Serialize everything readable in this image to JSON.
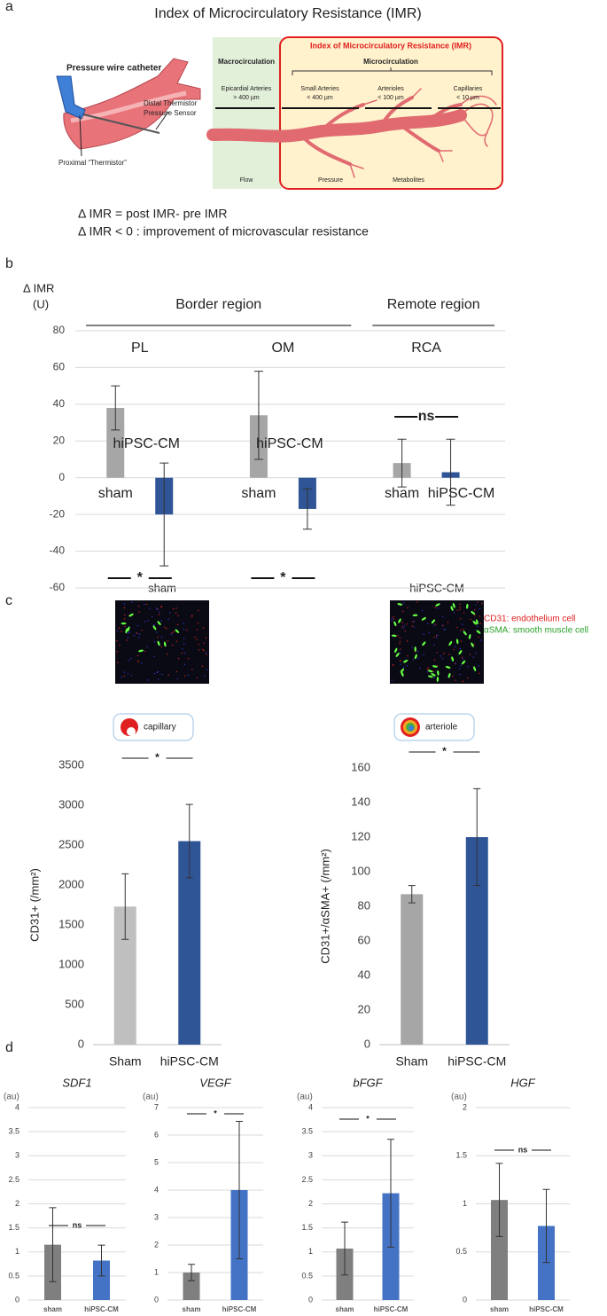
{
  "panel_labels": [
    "a",
    "b",
    "c",
    "d"
  ],
  "diagram": {
    "title": "Index of Microcirculatory Resistance (IMR)",
    "catheter": {
      "title": "Pressure wire catheter",
      "distal": "Distal Thermistor",
      "sensor": "Pressure Sensor",
      "proximal": "Proximal “Thermistor”"
    },
    "box": {
      "macro": "Macrocirculation",
      "imr": "Index of Microcirculatory Resistance (IMR)",
      "micro": "Microcirculation",
      "vessels": [
        {
          "name": "Epicardial Arteries",
          "size": "> 400 µm"
        },
        {
          "name": "Small Arteries",
          "size": "< 400 µm"
        },
        {
          "name": "Arterioles",
          "size": "< 100 µm"
        },
        {
          "name": "Capillaries",
          "size": "< 10 µm"
        }
      ],
      "bottom": [
        "Flow",
        "Pressure",
        "Metabolites"
      ]
    },
    "formulas": [
      "Δ IMR = post IMR- pre IMR",
      "Δ IMR < 0 : improvement of microvascular resistance"
    ]
  },
  "images": {
    "titles": [
      "sham",
      "hiPSC-CM"
    ],
    "legend": [
      "CD31: endothelium cell",
      "αSMA: smooth muscle cell"
    ],
    "icons": [
      "capillary",
      "arteriole"
    ]
  },
  "chart_data": [
    {
      "type": "bar",
      "y_label": "Δ IMR",
      "y_unit": "(U)",
      "group_labels": [
        "Border region",
        "Remote region"
      ],
      "categories": [
        "PL",
        "OM",
        "RCA"
      ],
      "series": [
        {
          "name": "sham",
          "color": "#a6a6a6",
          "values": [
            38,
            34,
            8
          ],
          "errors": [
            12,
            24,
            13
          ]
        },
        {
          "name": "hiPSC-CM",
          "color": "#2f5597",
          "values": [
            -20,
            -17,
            3
          ],
          "errors": [
            28,
            11,
            18
          ]
        }
      ],
      "significance": [
        "*",
        "*",
        "ns"
      ],
      "ylim": [
        -60,
        80
      ],
      "yticks": [
        -60,
        -40,
        -20,
        0,
        20,
        40,
        60,
        80
      ],
      "grid": true
    },
    {
      "type": "bar",
      "y_label": "CD31+ (/mm²)",
      "categories": [
        "Sham",
        "hiPSC-CM"
      ],
      "values": [
        1730,
        2550
      ],
      "errors": [
        410,
        460
      ],
      "colors": [
        "#bfbfbf",
        "#2f5597"
      ],
      "significance": [
        "*"
      ],
      "ylim": [
        0,
        3500
      ],
      "yticks": [
        0,
        500,
        1000,
        1500,
        2000,
        2500,
        3000,
        3500
      ],
      "grid": false
    },
    {
      "type": "bar",
      "y_label": "CD31+/αSMA+ (/mm²)",
      "categories": [
        "Sham",
        "hiPSC-CM"
      ],
      "values": [
        87,
        120
      ],
      "errors": [
        5,
        28
      ],
      "colors": [
        "#a6a6a6",
        "#2f5597"
      ],
      "significance": [
        "*"
      ],
      "ylim": [
        0,
        160
      ],
      "yticks": [
        0,
        20,
        40,
        60,
        80,
        100,
        120,
        140,
        160
      ],
      "grid": false
    },
    {
      "type": "bar",
      "title": "SDF1",
      "y_unit": "(au)",
      "categories": [
        "sham",
        "hiPSC-CM"
      ],
      "values": [
        1.15,
        0.82
      ],
      "errors": [
        0.77,
        0.32
      ],
      "colors": [
        "#7f7f7f",
        "#4472c4"
      ],
      "significance": [
        "ns"
      ],
      "ylim": [
        0,
        4
      ],
      "yticks": [
        0,
        0.5,
        1,
        1.5,
        2,
        2.5,
        3,
        3.5,
        4
      ],
      "grid": true
    },
    {
      "type": "bar",
      "title": "VEGF",
      "y_unit": "(au)",
      "categories": [
        "sham",
        "hiPSC-CM"
      ],
      "values": [
        1.0,
        4.0
      ],
      "errors": [
        0.3,
        2.5
      ],
      "colors": [
        "#7f7f7f",
        "#4472c4"
      ],
      "significance": [
        "*"
      ],
      "ylim": [
        0,
        7
      ],
      "yticks": [
        0,
        1,
        2,
        3,
        4,
        5,
        6,
        7
      ],
      "grid": true
    },
    {
      "type": "bar",
      "title": "bFGF",
      "y_unit": "(au)",
      "categories": [
        "sham",
        "hiPSC-CM"
      ],
      "values": [
        1.07,
        2.22
      ],
      "errors": [
        0.55,
        1.12
      ],
      "colors": [
        "#7f7f7f",
        "#4472c4"
      ],
      "significance": [
        "*"
      ],
      "ylim": [
        0,
        4
      ],
      "yticks": [
        0,
        0.5,
        1,
        1.5,
        2,
        2.5,
        3,
        3.5,
        4
      ],
      "grid": true
    },
    {
      "type": "bar",
      "title": "HGF",
      "y_unit": "(au)",
      "categories": [
        "sham",
        "hiPSC-CM"
      ],
      "values": [
        1.04,
        0.77
      ],
      "errors": [
        0.38,
        0.38
      ],
      "colors": [
        "#7f7f7f",
        "#4472c4"
      ],
      "significance": [
        "ns"
      ],
      "ylim": [
        0,
        2
      ],
      "yticks": [
        0,
        0.5,
        1,
        1.5,
        2
      ],
      "grid": true
    }
  ]
}
